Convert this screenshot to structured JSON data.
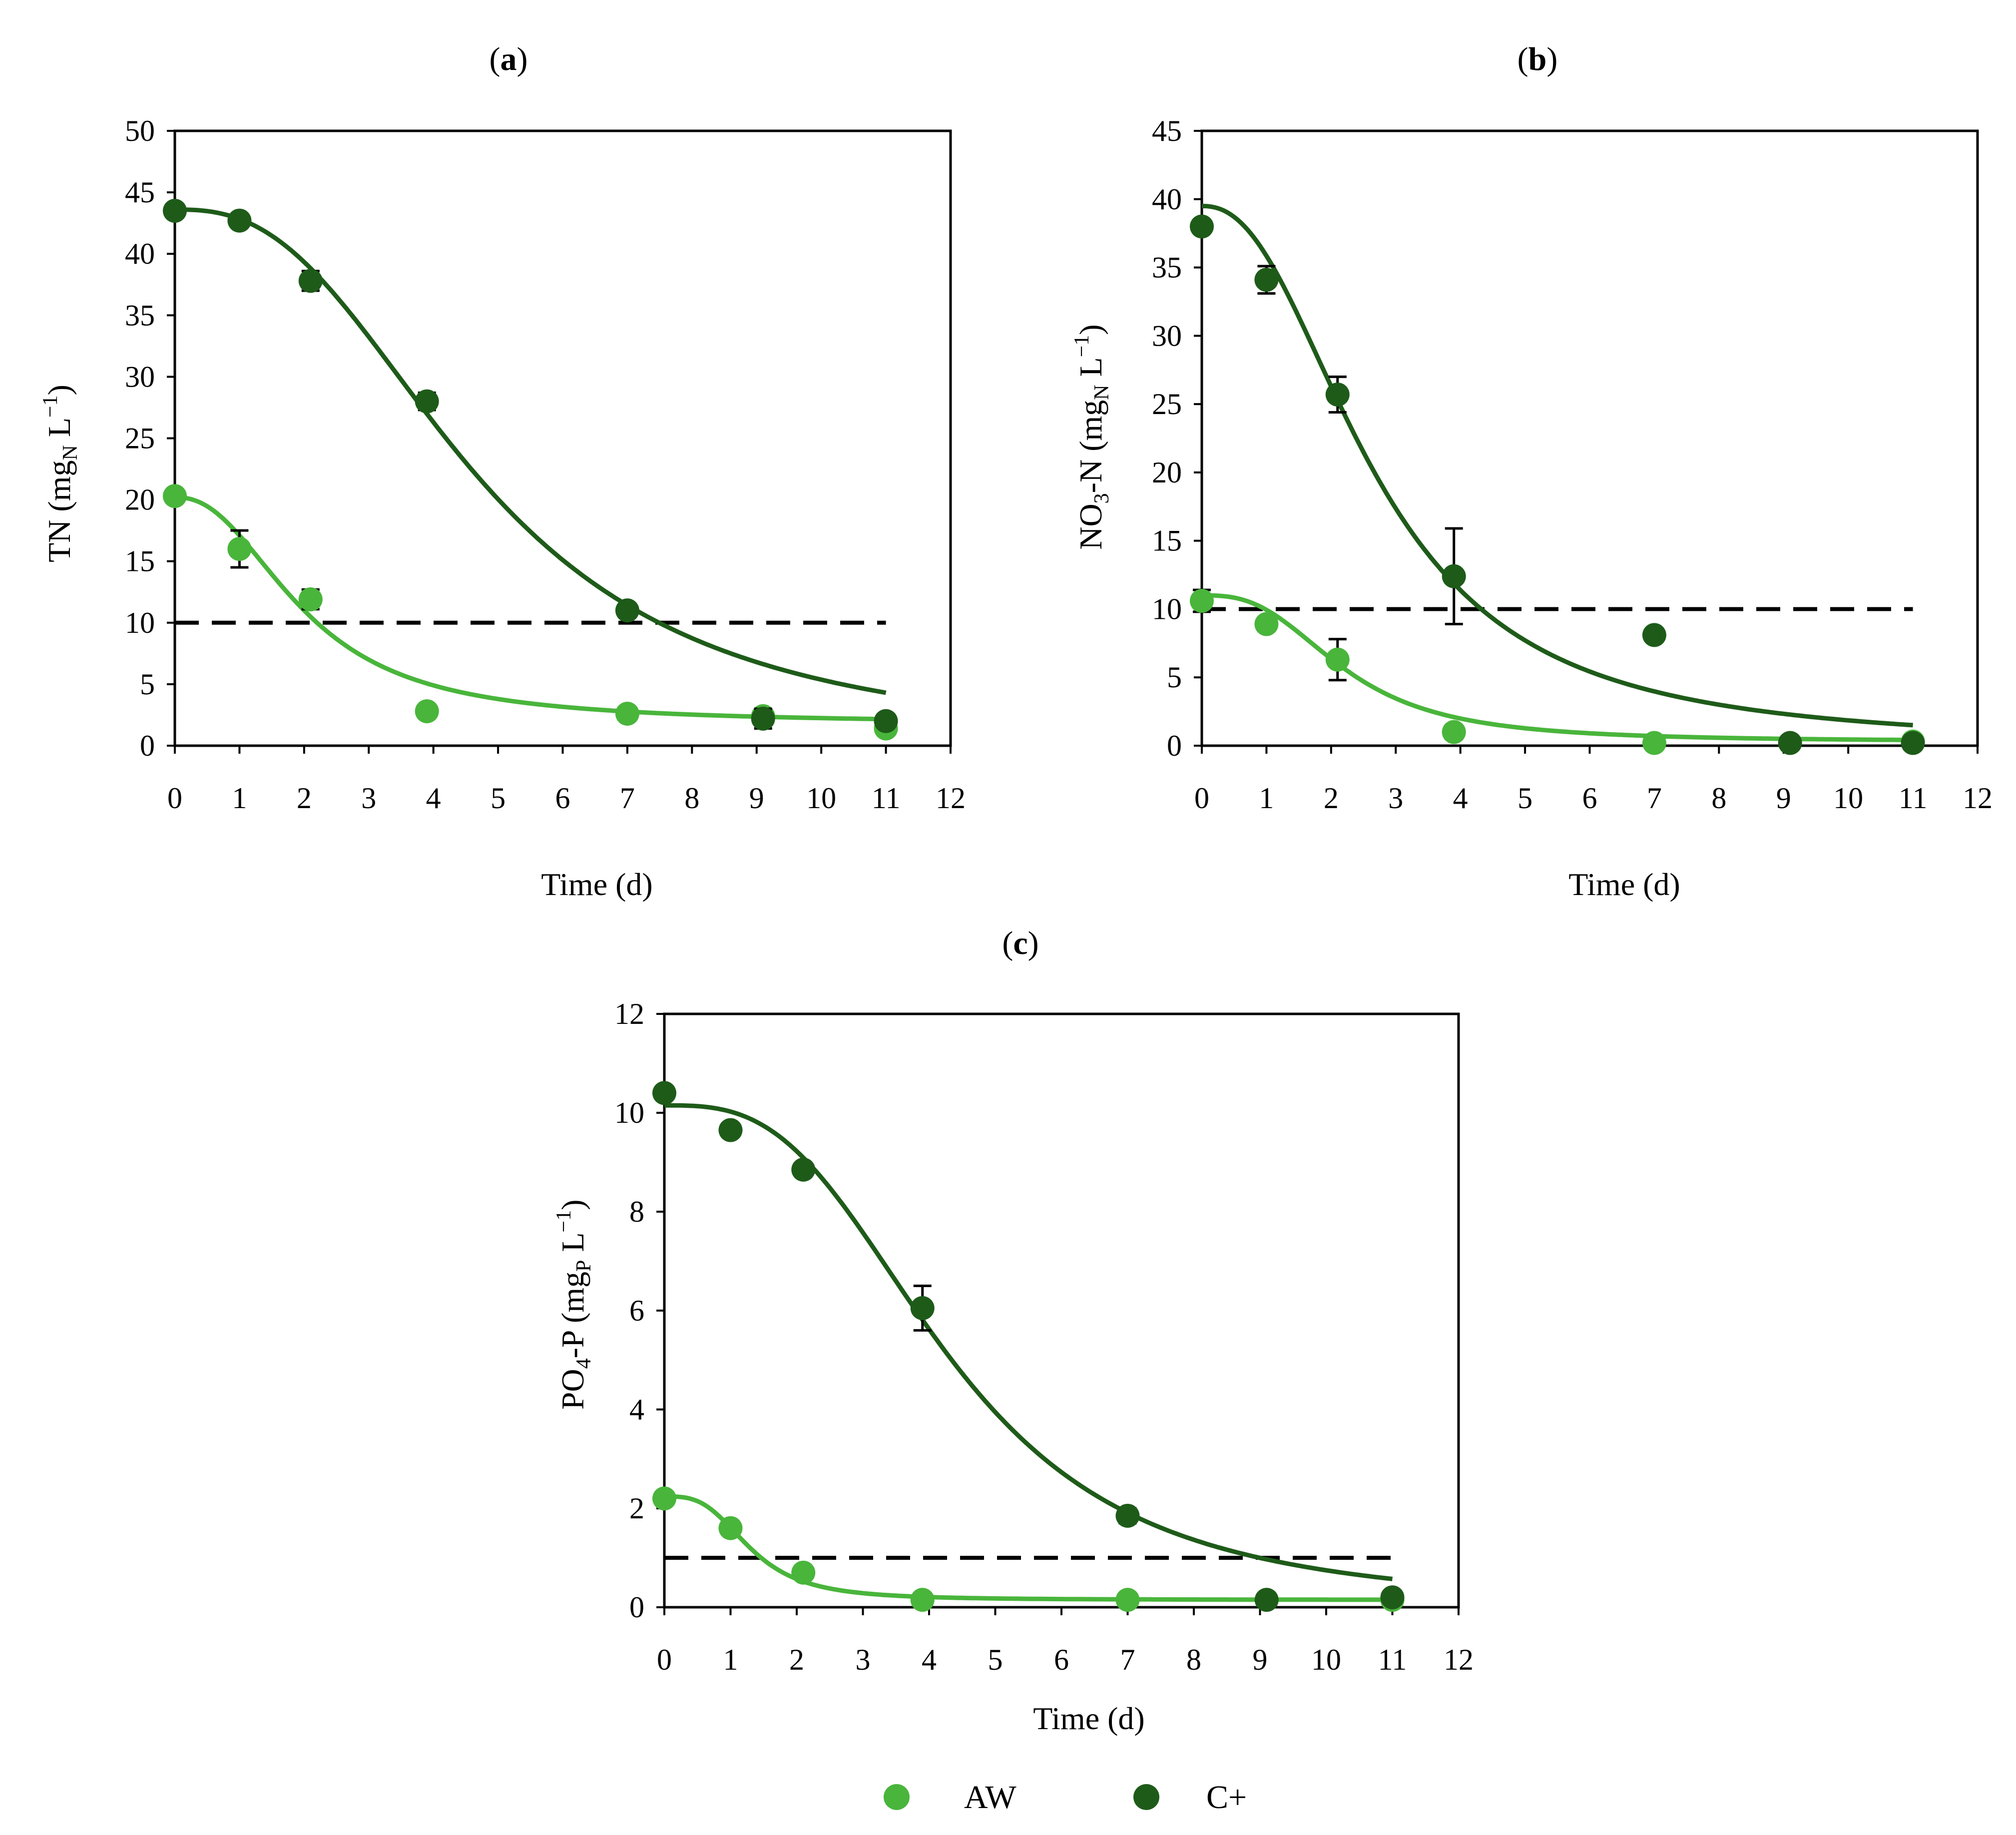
{
  "chart_data": [
    {
      "id": "a",
      "type": "scatter",
      "panel_label": "a",
      "xlabel": "Time (d)",
      "ylabel": {
        "base": "TN (mg",
        "sub": "N",
        "unit": " L",
        "sup": "−1",
        "close": ")"
      },
      "xlim": [
        0,
        12
      ],
      "xticks": [
        0,
        1,
        2,
        3,
        4,
        5,
        6,
        7,
        8,
        9,
        10,
        11,
        12
      ],
      "ylim": [
        0,
        50
      ],
      "yticks": [
        0,
        5,
        10,
        15,
        20,
        25,
        30,
        35,
        40,
        45,
        50
      ],
      "threshold": 10,
      "threshold_x": [
        0,
        11
      ],
      "series": [
        {
          "name": "AW",
          "color": "#49b53b",
          "points": [
            {
              "x": 0,
              "y": 20.3,
              "err": 0.3
            },
            {
              "x": 1,
              "y": 16.0,
              "err": 1.5
            },
            {
              "x": 2.1,
              "y": 11.9,
              "err": 0.8
            },
            {
              "x": 3.9,
              "y": 2.8,
              "err": 0
            },
            {
              "x": 7,
              "y": 2.6,
              "err": 0
            },
            {
              "x": 9.1,
              "y": 2.4,
              "err": 0.5
            },
            {
              "x": 11,
              "y": 1.4,
              "err": 0
            }
          ],
          "fit": {
            "bottom": 1.8,
            "top": 20.2,
            "x50": 2.0,
            "slope": 2.3
          }
        },
        {
          "name": "C+",
          "color": "#1e5b19",
          "points": [
            {
              "x": 0,
              "y": 43.5,
              "err": 0
            },
            {
              "x": 1,
              "y": 42.7,
              "err": 0.5
            },
            {
              "x": 2.1,
              "y": 37.8,
              "err": 0.8
            },
            {
              "x": 3.9,
              "y": 28.0,
              "err": 0.7
            },
            {
              "x": 7,
              "y": 11.0,
              "err": 0
            },
            {
              "x": 9.1,
              "y": 2.2,
              "err": 0.8
            },
            {
              "x": 11,
              "y": 2.0,
              "err": 0
            }
          ],
          "fit": {
            "bottom": 0,
            "top": 43.6,
            "x50": 4.7,
            "slope": 2.6
          }
        }
      ]
    },
    {
      "id": "b",
      "type": "scatter",
      "panel_label": "b",
      "xlabel": "Time (d)",
      "ylabel": {
        "base": "NO",
        "sub0": "3",
        "mid": "-N (mg",
        "sub": "N",
        "unit": " L",
        "sup": "−1",
        "close": ")"
      },
      "xlim": [
        0,
        12
      ],
      "xticks": [
        0,
        1,
        2,
        3,
        4,
        5,
        6,
        7,
        8,
        9,
        10,
        11,
        12
      ],
      "ylim": [
        0,
        45
      ],
      "yticks": [
        0,
        5,
        10,
        15,
        20,
        25,
        30,
        35,
        40,
        45
      ],
      "threshold": 10,
      "threshold_x": [
        0,
        11
      ],
      "series": [
        {
          "name": "AW",
          "color": "#49b53b",
          "points": [
            {
              "x": 0,
              "y": 10.6,
              "err": 0.8
            },
            {
              "x": 1,
              "y": 8.9,
              "err": 0.5
            },
            {
              "x": 2.1,
              "y": 6.3,
              "err": 1.5
            },
            {
              "x": 3.9,
              "y": 1.0,
              "err": 0.5
            },
            {
              "x": 7,
              "y": 0.2,
              "err": 0
            },
            {
              "x": 11,
              "y": 0.3,
              "err": 0
            }
          ],
          "fit": {
            "bottom": 0.3,
            "top": 11.0,
            "x50": 2.2,
            "slope": 2.8
          }
        },
        {
          "name": "C+",
          "color": "#1e5b19",
          "points": [
            {
              "x": 0,
              "y": 38.0,
              "err": 0
            },
            {
              "x": 1,
              "y": 34.1,
              "err": 1.0
            },
            {
              "x": 2.1,
              "y": 25.7,
              "err": 1.3
            },
            {
              "x": 3.9,
              "y": 12.4,
              "err": 3.5
            },
            {
              "x": 7,
              "y": 8.1,
              "err": 0
            },
            {
              "x": 9.1,
              "y": 0.2,
              "err": 0
            },
            {
              "x": 11,
              "y": 0.2,
              "err": 0
            }
          ],
          "fit": {
            "bottom": 0,
            "top": 39.5,
            "x50": 2.7,
            "slope": 2.3
          }
        }
      ]
    },
    {
      "id": "c",
      "type": "scatter",
      "panel_label": "c",
      "xlabel": "Time (d)",
      "ylabel": {
        "base": "PO",
        "sub0": "4",
        "mid": "-P (mg",
        "sub": "P",
        "unit": " L",
        "sup": "−1",
        "close": ")"
      },
      "xlim": [
        0,
        12
      ],
      "xticks": [
        0,
        1,
        2,
        3,
        4,
        5,
        6,
        7,
        8,
        9,
        10,
        11,
        12
      ],
      "ylim": [
        0,
        12
      ],
      "yticks": [
        0,
        2,
        4,
        6,
        8,
        10,
        12
      ],
      "threshold": 1,
      "threshold_x": [
        0,
        11
      ],
      "series": [
        {
          "name": "AW",
          "color": "#49b53b",
          "points": [
            {
              "x": 0,
              "y": 2.2,
              "err": 0
            },
            {
              "x": 1,
              "y": 1.6,
              "err": 0
            },
            {
              "x": 2.1,
              "y": 0.7,
              "err": 0
            },
            {
              "x": 3.9,
              "y": 0.15,
              "err": 0
            },
            {
              "x": 7,
              "y": 0.15,
              "err": 0
            },
            {
              "x": 11,
              "y": 0.15,
              "err": 0
            }
          ],
          "fit": {
            "bottom": 0.15,
            "top": 2.24,
            "x50": 1.3,
            "slope": 3.2
          }
        },
        {
          "name": "C+",
          "color": "#1e5b19",
          "points": [
            {
              "x": 0,
              "y": 10.4,
              "err": 0
            },
            {
              "x": 1,
              "y": 9.65,
              "err": 0
            },
            {
              "x": 2.1,
              "y": 8.85,
              "err": 0
            },
            {
              "x": 3.9,
              "y": 6.05,
              "err": 0.45
            },
            {
              "x": 7,
              "y": 1.85,
              "err": 0.15
            },
            {
              "x": 9.1,
              "y": 0.15,
              "err": 0
            },
            {
              "x": 11,
              "y": 0.2,
              "err": 0
            }
          ],
          "fit": {
            "bottom": 0,
            "top": 10.15,
            "x50": 4.3,
            "slope": 3.0
          }
        }
      ]
    }
  ],
  "legend": [
    {
      "label": "AW",
      "color": "#49b53b"
    },
    {
      "label": "C+",
      "color": "#1e5b19"
    }
  ]
}
